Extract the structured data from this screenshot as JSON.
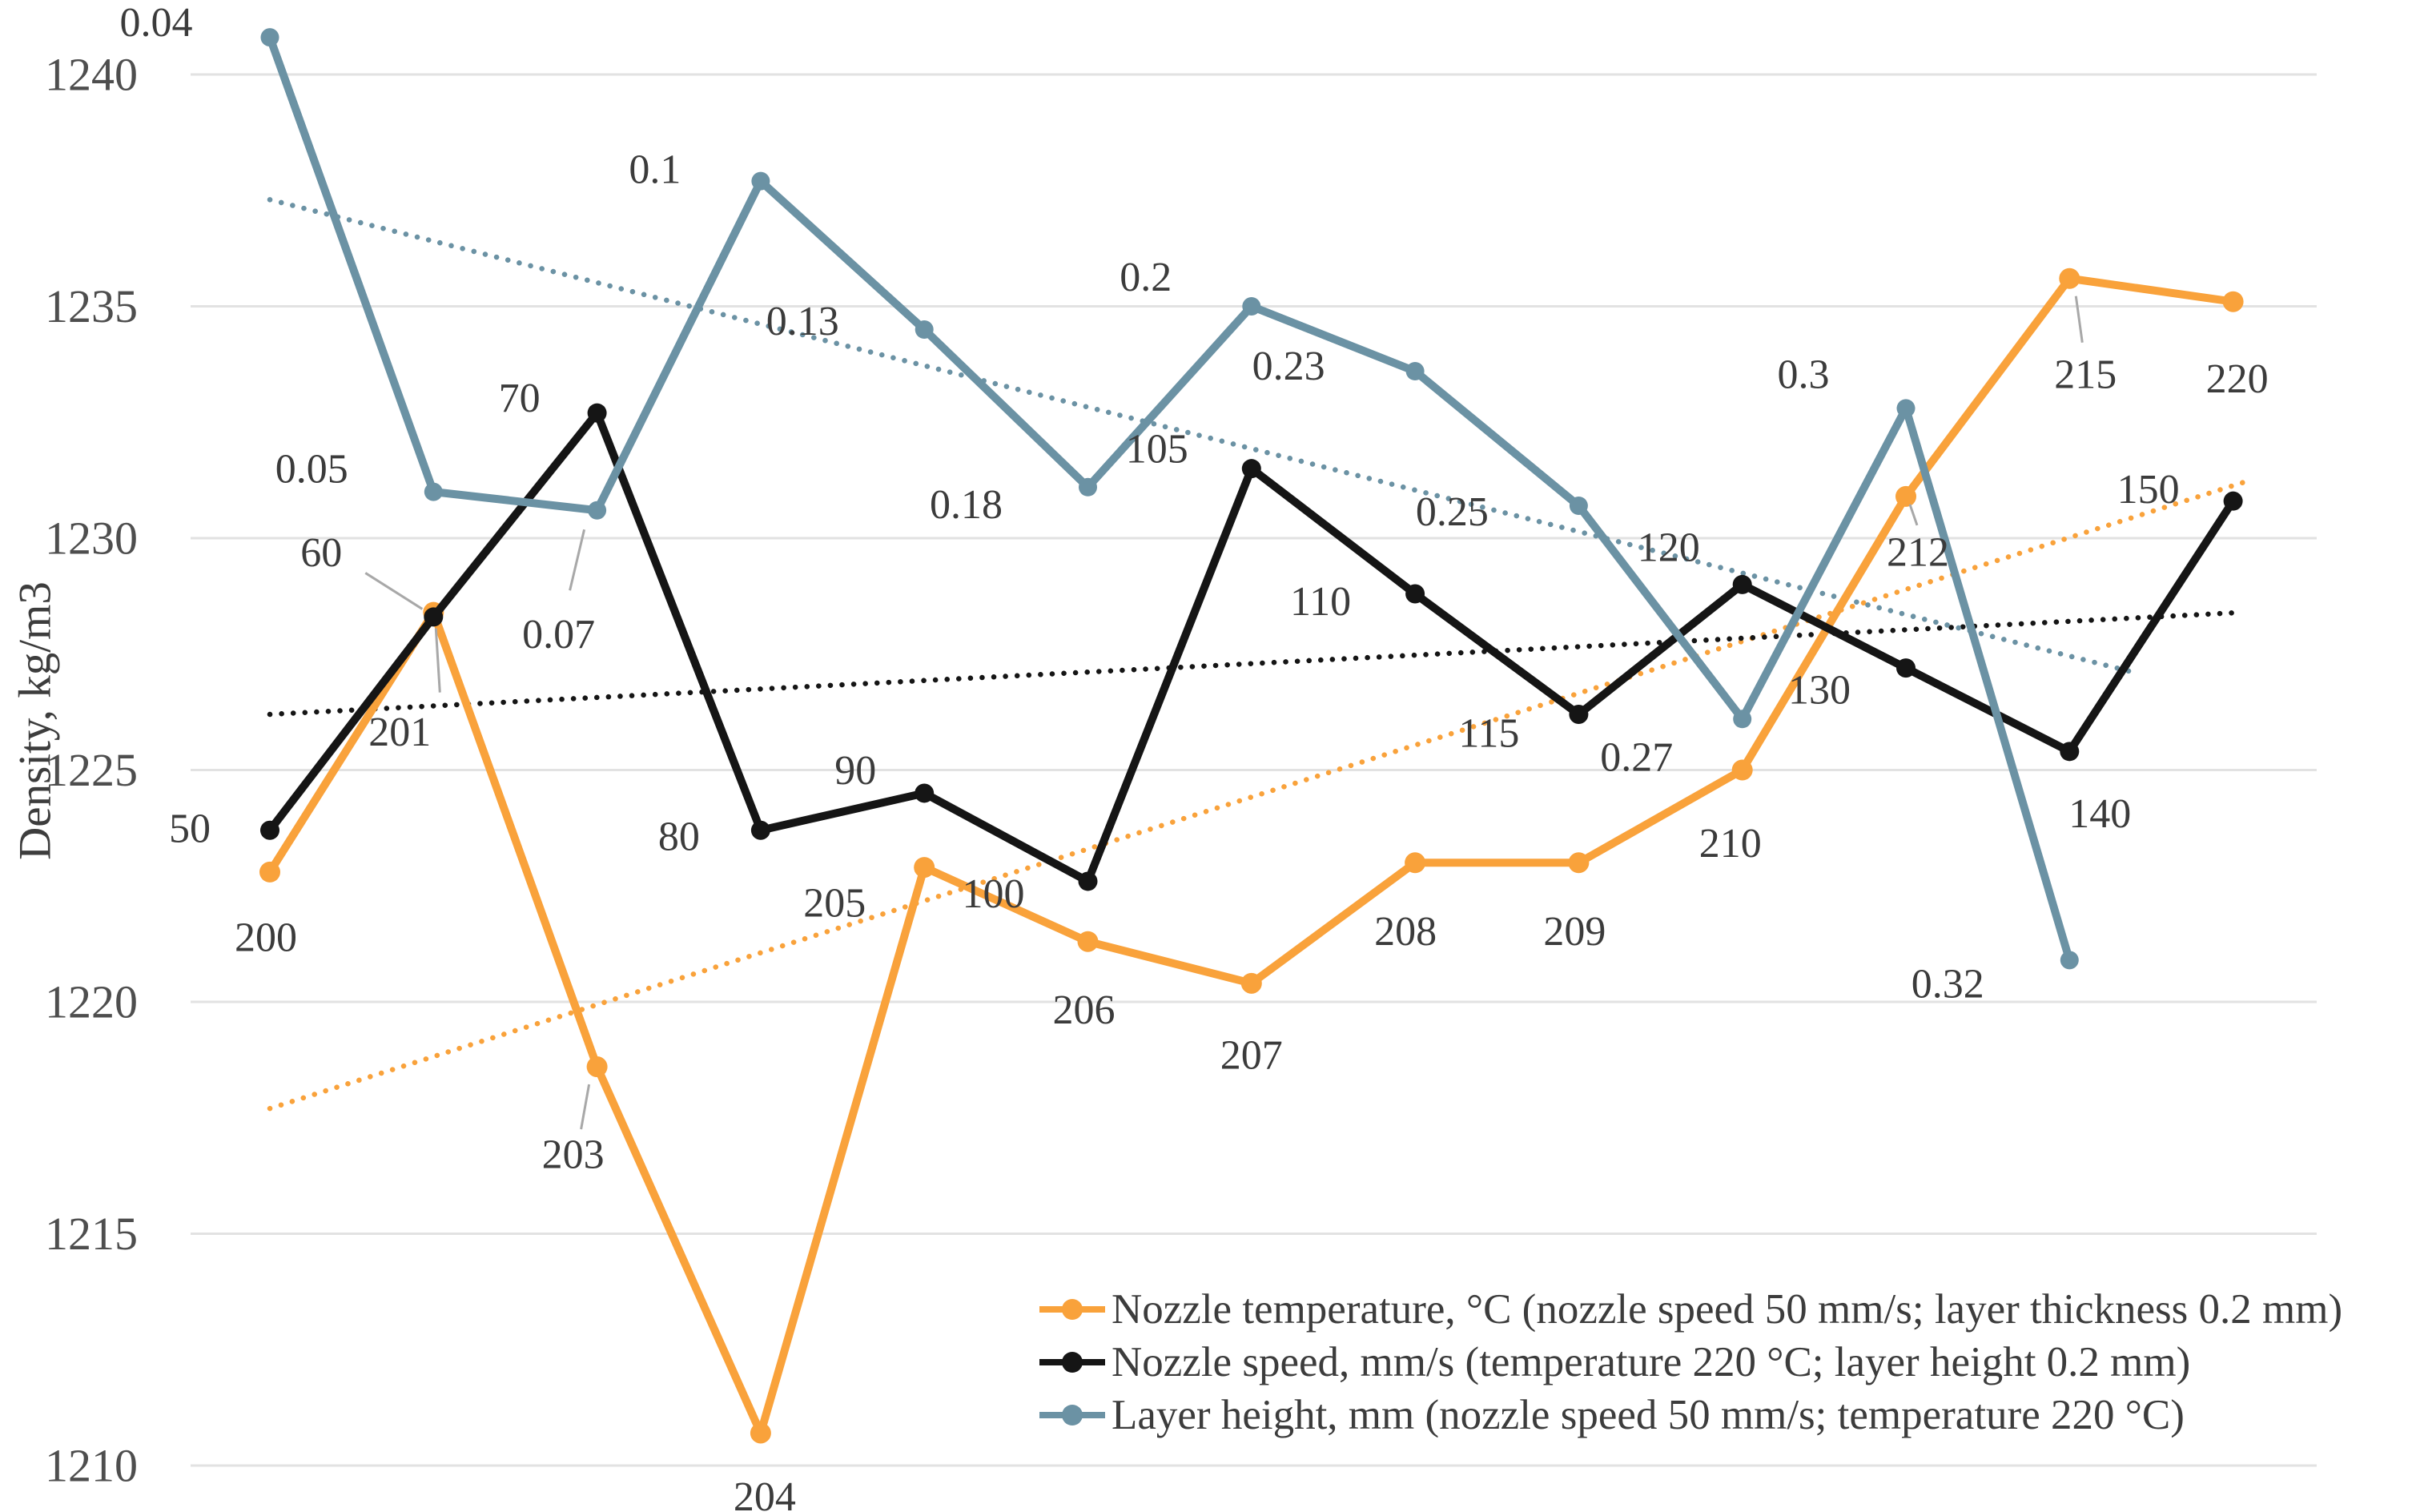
{
  "chart_data": {
    "type": "line",
    "title": "",
    "xlabel": "",
    "ylabel": "Density, kg/m3",
    "y_ticks": [
      1240,
      1235,
      1230,
      1225,
      1220,
      1215,
      1210
    ],
    "ylim": [
      1209,
      1241
    ],
    "grid": "horizontal-only",
    "legend_position": "bottom-right",
    "gridline_color": "#E2E2E2",
    "label_color": "#3b3b3b",
    "tick_color": "#4e4e4e",
    "leader_color": "#a8a8a8",
    "series": [
      {
        "name": "Nozzle temperature, °C (nozzle speed 50 mm/s; layer thickness 0.2 mm)",
        "color": "#F9A23B",
        "trend": {
          "i_start": 0,
          "v_start": 1217.7,
          "i_end": 12.06,
          "v_end": 1231.2
        },
        "points": [
          {
            "label": "200",
            "value": 1222.8,
            "dx": -5,
            "dy": 82
          },
          {
            "label": "201",
            "value": 1228.4,
            "dx": -42,
            "dy": 150,
            "leader": [
              3,
              20,
              8,
              100
            ]
          },
          {
            "label": "203",
            "value": 1218.6,
            "dx": -30,
            "dy": 110,
            "leader": [
              -10,
              22,
              -20,
              78
            ]
          },
          {
            "label": "204",
            "value": 1210.7,
            "dx": 5,
            "dy": 80
          },
          {
            "label": "205",
            "value": 1222.9,
            "dx": -112,
            "dy": 45
          },
          {
            "label": "206",
            "value": 1221.3,
            "dx": -5,
            "dy": 86
          },
          {
            "label": "207",
            "value": 1220.4,
            "dx": 0,
            "dy": 90
          },
          {
            "label": "208",
            "value": 1223.0,
            "dx": -12,
            "dy": 86
          },
          {
            "label": "209",
            "value": 1223.0,
            "dx": -5,
            "dy": 86
          },
          {
            "label": "210",
            "value": 1225.0,
            "dx": -15,
            "dy": 92
          },
          {
            "label": "212",
            "value": 1230.9,
            "dx": 15,
            "dy": 70,
            "leader": [
              5,
              10,
              14,
              36
            ]
          },
          {
            "label": "215",
            "value": 1235.6,
            "dx": 20,
            "dy": 120,
            "leader": [
              8,
              22,
              16,
              80
            ]
          },
          {
            "label": "220",
            "value": 1235.1,
            "dx": 5,
            "dy": 97
          }
        ]
      },
      {
        "name": "Nozzle speed, mm/s (temperature 220 °C; layer height 0.2 mm)",
        "color": "#151515",
        "trend": {
          "i_start": 0,
          "v_start": 1226.2,
          "i_end": 12.06,
          "v_end": 1228.4
        },
        "points": [
          {
            "label": "50",
            "value": 1223.7,
            "dx": -100,
            "dy": -2
          },
          {
            "label": "60",
            "value": 1228.3,
            "dx": -140,
            "dy": -80,
            "leader": [
              -14,
              -10,
              -85,
              -55
            ]
          },
          {
            "label": "70",
            "value": 1232.7,
            "dx": -97,
            "dy": -18
          },
          {
            "label": "80",
            "value": 1223.7,
            "dx": -102,
            "dy": 8
          },
          {
            "label": "90",
            "value": 1224.5,
            "dx": -86,
            "dy": -28
          },
          {
            "label": "100",
            "value": 1222.6,
            "dx": -118,
            "dy": 16
          },
          {
            "label": "105",
            "value": 1231.5,
            "dx": -118,
            "dy": -24
          },
          {
            "label": "110",
            "value": 1228.8,
            "dx": -118,
            "dy": 10
          },
          {
            "label": "115",
            "value": 1226.2,
            "dx": -112,
            "dy": 24
          },
          {
            "label": "120",
            "value": 1229.0,
            "dx": -92,
            "dy": -46
          },
          {
            "label": "130",
            "value": 1227.2,
            "dx": -108,
            "dy": 28
          },
          {
            "label": "140",
            "value": 1225.4,
            "dx": 38,
            "dy": 78
          },
          {
            "label": "150",
            "value": 1230.8,
            "dx": -106,
            "dy": -14
          }
        ]
      },
      {
        "name": "Layer height, mm (nozzle speed 50 mm/s; temperature 220 °C)",
        "color": "#6B92A4",
        "trend": {
          "i_start": 0,
          "v_start": 1237.3,
          "i_end": 11.4,
          "v_end": 1227.1
        },
        "points": [
          {
            "label": "0.04",
            "value": 1240.8,
            "dx": -142,
            "dy": -18
          },
          {
            "label": "0.05",
            "value": 1231.0,
            "dx": -152,
            "dy": -28
          },
          {
            "label": "0.07",
            "value": 1230.6,
            "dx": -48,
            "dy": 155,
            "leader": [
              -16,
              24,
              -34,
              100
            ]
          },
          {
            "label": "0.1",
            "value": 1237.7,
            "dx": -132,
            "dy": -14
          },
          {
            "label": "0.13",
            "value": 1234.5,
            "dx": -152,
            "dy": -10
          },
          {
            "label": "0.18",
            "value": 1231.1,
            "dx": -152,
            "dy": 22
          },
          {
            "label": "0.2",
            "value": 1235.0,
            "dx": -132,
            "dy": -36
          },
          {
            "label": "0.23",
            "value": 1233.6,
            "dx": -158,
            "dy": -6
          },
          {
            "label": "0.25",
            "value": 1230.7,
            "dx": -158,
            "dy": 8
          },
          {
            "label": "0.27",
            "value": 1226.1,
            "dx": -132,
            "dy": 48
          },
          {
            "label": "0.3",
            "value": 1232.8,
            "dx": -128,
            "dy": -42
          },
          {
            "label": "0.32",
            "value": 1220.9,
            "dx": -152,
            "dy": 30
          }
        ]
      }
    ]
  }
}
